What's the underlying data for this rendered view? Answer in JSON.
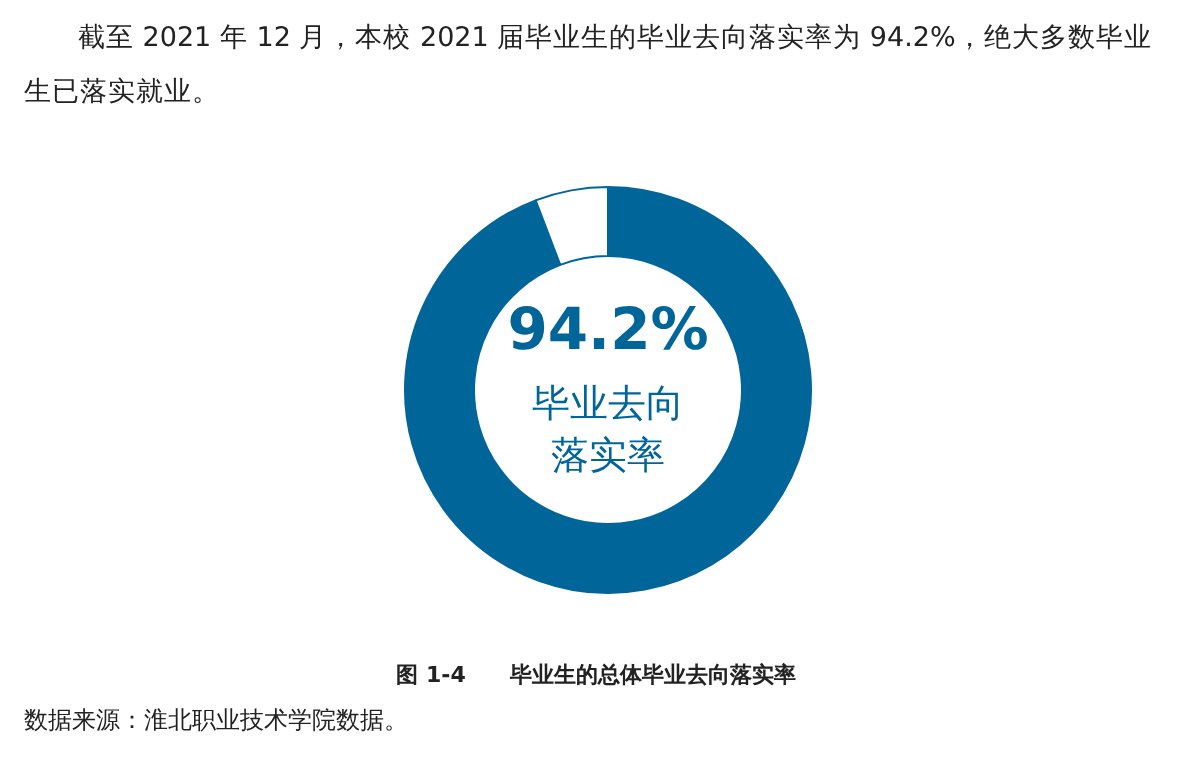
{
  "chart_data": {
    "type": "donut",
    "title": "图 1-4　　毕业生的总体毕业去向落实率",
    "subtitle": "截至 2021 年 12 月，本校 2021 届毕业生的毕业去向落实率为 94.2%，绝大多数毕业生已落实就业。",
    "categories": [
      null,
      null
    ],
    "values": [
      94.2,
      5.8
    ],
    "colors": [
      "#006699",
      "#ffffff"
    ],
    "value_labels": [
      "94.2%",
      null
    ],
    "annotations": [
      "毕业去向落实率",
      "数据来源：淮北职业技术学院数据。"
    ],
    "legend": false
  }
}
